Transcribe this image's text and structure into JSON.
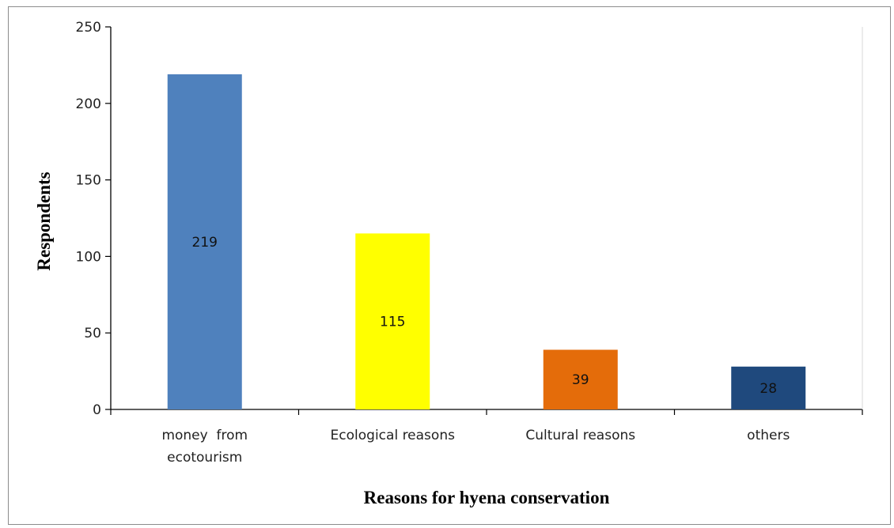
{
  "chart_data": {
    "type": "bar",
    "categories": [
      [
        "money  from",
        "ecotourism"
      ],
      [
        "Ecological reasons"
      ],
      [
        "Cultural reasons"
      ],
      [
        "others"
      ]
    ],
    "values": [
      219,
      115,
      39,
      28
    ],
    "data_labels": [
      "219",
      "115",
      "39",
      "28"
    ],
    "colors": [
      "#4f81bd",
      "#ffff00",
      "#e46c0a",
      "#1f497d"
    ],
    "xlabel": "Reasons for hyena conservation",
    "ylabel": "Respondents",
    "ylim": [
      0,
      250
    ],
    "yticks": [
      0,
      50,
      100,
      150,
      200,
      250
    ],
    "grid": false,
    "legend": "none"
  }
}
